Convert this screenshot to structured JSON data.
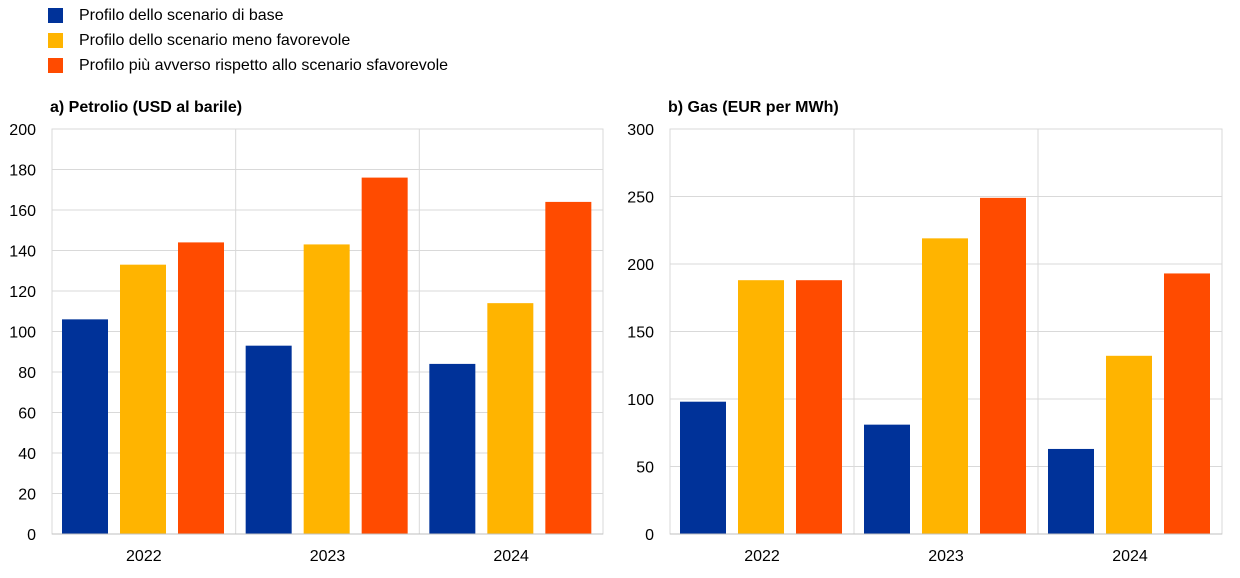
{
  "legend": [
    {
      "label": "Profilo dello scenario di base",
      "color": "#003299"
    },
    {
      "label": "Profilo dello scenario meno favorevole",
      "color": "#FFB400"
    },
    {
      "label": "Profilo più avverso rispetto allo scenario sfavorevole",
      "color": "#FF4B00"
    }
  ],
  "chart_data": [
    {
      "type": "bar",
      "title": "a) Petrolio (USD al barile)",
      "categories": [
        "2022",
        "2023",
        "2024"
      ],
      "ylim": [
        0,
        200
      ],
      "yticks": [
        0,
        20,
        40,
        60,
        80,
        100,
        120,
        140,
        160,
        180,
        200
      ],
      "grid": true,
      "series": [
        {
          "name": "Profilo dello scenario di base",
          "values": [
            106,
            93,
            84
          ]
        },
        {
          "name": "Profilo dello scenario meno favorevole",
          "values": [
            133,
            143,
            114
          ]
        },
        {
          "name": "Profilo più avverso rispetto allo scenario sfavorevole",
          "values": [
            144,
            176,
            164
          ]
        }
      ]
    },
    {
      "type": "bar",
      "title": "b) Gas (EUR per MWh)",
      "categories": [
        "2022",
        "2023",
        "2024"
      ],
      "ylim": [
        0,
        300
      ],
      "yticks": [
        0,
        50,
        100,
        150,
        200,
        250,
        300
      ],
      "grid": true,
      "series": [
        {
          "name": "Profilo dello scenario di base",
          "values": [
            98,
            81,
            63
          ]
        },
        {
          "name": "Profilo dello scenario meno favorevole",
          "values": [
            188,
            219,
            132
          ]
        },
        {
          "name": "Profilo più avverso rispetto allo scenario sfavorevole",
          "values": [
            188,
            249,
            193
          ]
        }
      ]
    }
  ]
}
